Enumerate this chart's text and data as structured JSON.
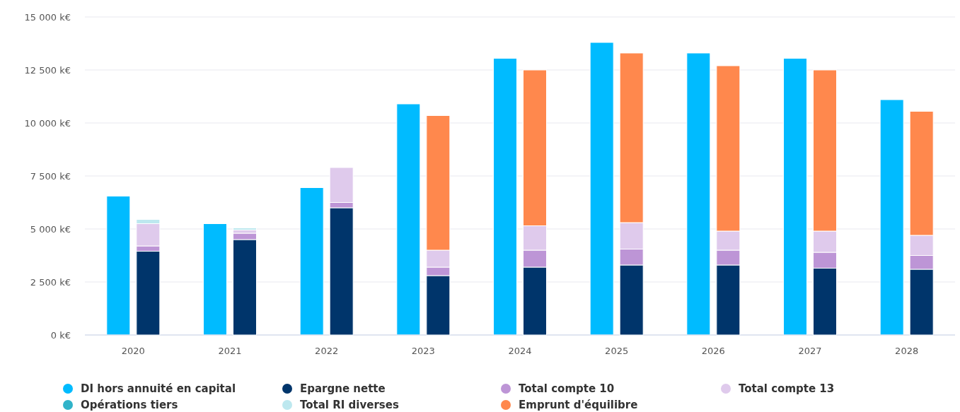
{
  "chart_data": [
    {
      "type": "bar",
      "categories": [
        "2020",
        "2021",
        "2022",
        "2023",
        "2024",
        "2025",
        "2026",
        "2027",
        "2028"
      ],
      "series": [
        {
          "name": "DI hors annuité en capital",
          "color": "#00bbff",
          "values": [
            6550,
            5250,
            6950,
            10900,
            13050,
            13800,
            13300,
            13050,
            11100
          ]
        }
      ],
      "ylim": [
        0,
        15000
      ],
      "yticks": [
        {
          "value": 0,
          "label": "0 k€"
        },
        {
          "value": 2500,
          "label": "2 500 k€"
        },
        {
          "value": 5000,
          "label": "5 000 k€"
        },
        {
          "value": 7500,
          "label": "7 500 k€"
        },
        {
          "value": 10000,
          "label": "10 000 k€"
        },
        {
          "value": 12500,
          "label": "12 500 k€"
        },
        {
          "value": 15000,
          "label": "15 000 k€"
        }
      ],
      "grid": "y",
      "legend": "bottom"
    },
    {
      "type": "bar",
      "stacked": true,
      "categories": [
        "2020",
        "2021",
        "2022",
        "2023",
        "2024",
        "2025",
        "2026",
        "2027",
        "2028"
      ],
      "series": [
        {
          "name": "Epargne nette",
          "color": "#00356b",
          "values": [
            3950,
            4500,
            6000,
            2800,
            3200,
            3300,
            3300,
            3150,
            3100
          ]
        },
        {
          "name": "Total compte 10",
          "color": "#bd95d6",
          "values": [
            250,
            300,
            250,
            400,
            800,
            750,
            700,
            750,
            650
          ]
        },
        {
          "name": "Total compte 13",
          "color": "#dfcaec",
          "values": [
            1050,
            150,
            1650,
            800,
            1150,
            1250,
            900,
            1000,
            950
          ]
        },
        {
          "name": "Opérations tiers",
          "color": "#30b3c9",
          "values": [
            null,
            null,
            null,
            null,
            null,
            null,
            null,
            null,
            null
          ]
        },
        {
          "name": "Total RI diverses",
          "color": "#bde8ef",
          "values": [
            200,
            100,
            null,
            null,
            null,
            null,
            null,
            null,
            null
          ]
        },
        {
          "name": "Emprunt d'équilibre",
          "color": "#ff884d",
          "values": [
            null,
            null,
            null,
            6350,
            7350,
            8000,
            7800,
            7600,
            5850
          ]
        }
      ],
      "ylim": [
        0,
        15000
      ],
      "tick_labels": false,
      "legend": "bottom"
    }
  ]
}
